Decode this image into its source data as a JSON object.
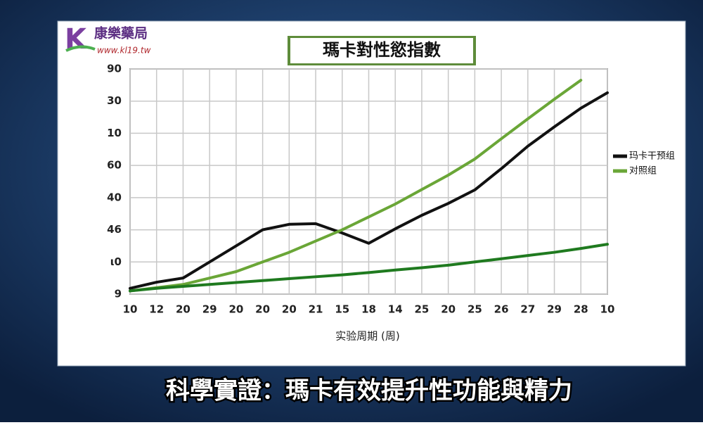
{
  "logo": {
    "name": "康樂藥局",
    "url": "www.kl19.tw"
  },
  "caption": "科學實證：瑪卡有效提升性功能與精力",
  "chart_data": {
    "type": "line",
    "title": "瑪卡對性慾指數",
    "xlabel": "实验周期 (周)",
    "categories": [
      "10",
      "12",
      "20",
      "29",
      "20",
      "20",
      "20",
      "21",
      "15",
      "18",
      "14",
      "25",
      "20",
      "25",
      "26",
      "27",
      "29",
      "28",
      "10"
    ],
    "ylim": [
      0,
      7
    ],
    "yticks": [
      {
        "value": 0,
        "label": "9"
      },
      {
        "value": 1,
        "label": "ι0"
      },
      {
        "value": 2,
        "label": "46"
      },
      {
        "value": 3,
        "label": "40"
      },
      {
        "value": 4,
        "label": "60"
      },
      {
        "value": 5,
        "label": "10"
      },
      {
        "value": 6,
        "label": "30"
      },
      {
        "value": 7,
        "label": "90"
      }
    ],
    "grid": true,
    "legend": "right",
    "series": [
      {
        "name": "玛卡干预组",
        "color": "#111111",
        "values": [
          0.18,
          0.37,
          0.5,
          1.0,
          1.5,
          2.0,
          2.17,
          2.19,
          1.9,
          1.58,
          2.03,
          2.45,
          2.82,
          3.24,
          3.9,
          4.6,
          5.2,
          5.78,
          6.26
        ]
      },
      {
        "name": "对照组",
        "color": "#6aa637",
        "values": [
          0.1,
          0.2,
          0.3,
          0.5,
          0.7,
          1.0,
          1.3,
          1.65,
          2.0,
          2.4,
          2.8,
          3.25,
          3.7,
          4.2,
          4.83,
          5.45,
          6.06,
          6.65,
          null
        ]
      },
      {
        "color": "#1f7a1f",
        "values": [
          0.1,
          0.18,
          0.24,
          0.3,
          0.36,
          0.42,
          0.48,
          0.54,
          0.6,
          0.67,
          0.75,
          0.82,
          0.9,
          1.0,
          1.1,
          1.2,
          1.3,
          1.42,
          1.55
        ]
      }
    ]
  }
}
